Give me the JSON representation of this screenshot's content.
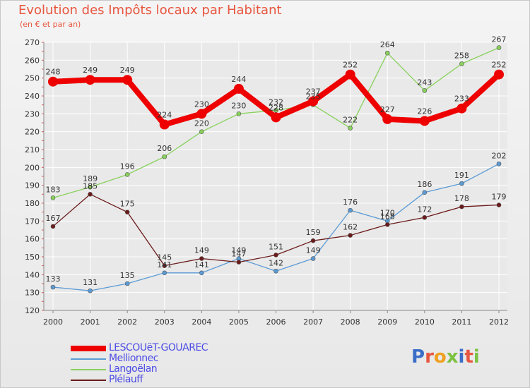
{
  "title": "Evolution des Impôts locaux par Habitant",
  "subtitle": "(en € et par an)",
  "logo_text": "Proxiti",
  "colors": {
    "title": "#e8563f",
    "legend_text": "#4c4ce6",
    "grid": "#ffffff",
    "axis": "#888888"
  },
  "chart_data": {
    "type": "line",
    "x": [
      "2000",
      "2001",
      "2002",
      "2003",
      "2004",
      "2005",
      "2006",
      "2007",
      "2008",
      "2009",
      "2010",
      "2011",
      "2012"
    ],
    "ylim": [
      120,
      270
    ],
    "yticks": [
      120,
      130,
      140,
      150,
      160,
      170,
      180,
      190,
      200,
      210,
      220,
      230,
      240,
      250,
      260,
      270
    ],
    "series": [
      {
        "name": "LESCOUëT-GOUAREC",
        "color": "#ee0000",
        "values": [
          248,
          249,
          249,
          224,
          230,
          244,
          228,
          237,
          252,
          227,
          226,
          233,
          252
        ]
      },
      {
        "name": "Mellionnec",
        "color": "#5b9bd5",
        "values": [
          133,
          131,
          135,
          141,
          141,
          149,
          142,
          149,
          176,
          170,
          186,
          191,
          202
        ]
      },
      {
        "name": "Langoëlan",
        "color": "#88d15b",
        "values": [
          183,
          189,
          196,
          206,
          220,
          230,
          232,
          235,
          222,
          264,
          243,
          258,
          267
        ]
      },
      {
        "name": "Plélauff",
        "color": "#6b1a1a",
        "values": [
          167,
          185,
          175,
          145,
          149,
          147,
          151,
          159,
          162,
          168,
          172,
          178,
          179
        ]
      }
    ]
  }
}
